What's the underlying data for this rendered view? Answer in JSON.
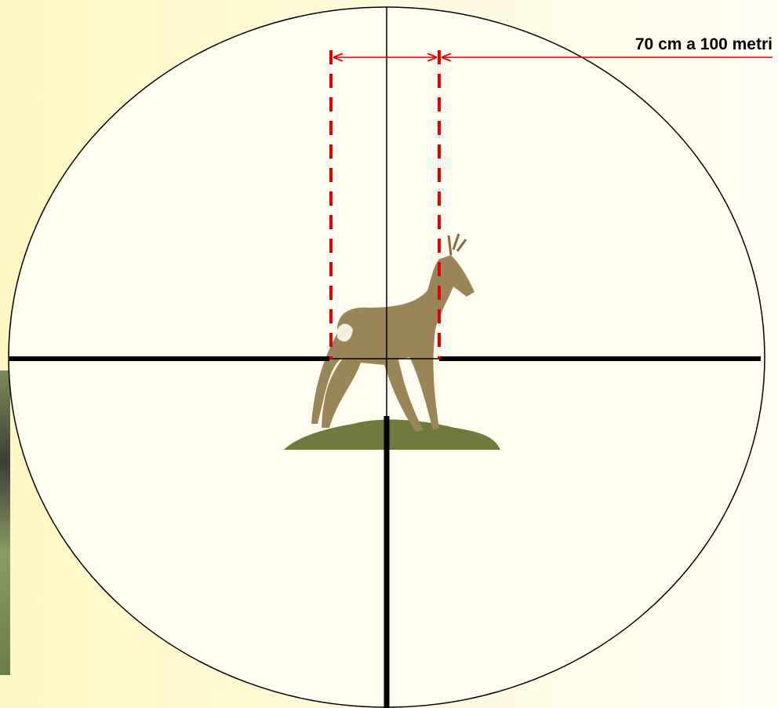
{
  "annotation": {
    "label": "70 cm a 100 metri"
  }
}
